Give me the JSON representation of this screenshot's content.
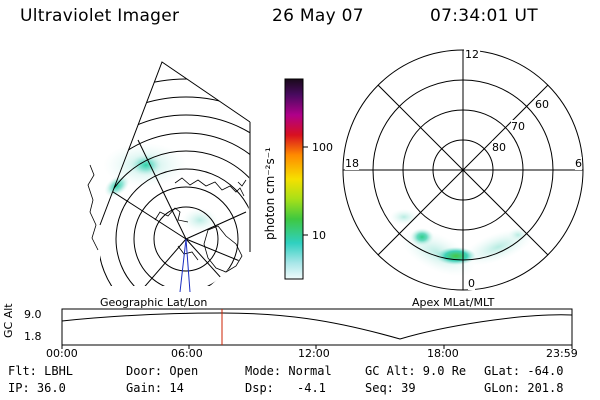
{
  "header": {
    "instrument": "Ultraviolet Imager",
    "date": "26 May 07",
    "time": "07:34:01 UT"
  },
  "colorbar": {
    "label": "photon cm⁻²s⁻¹",
    "ticks": [
      "100",
      "10"
    ]
  },
  "polar_plot": {
    "hour_labels": [
      "12",
      "18",
      "6",
      "0"
    ],
    "lat_labels": [
      "60",
      "70",
      "80"
    ],
    "caption": "Apex MLat/MLT"
  },
  "geo_plot": {
    "caption": "Geographic Lat/Lon"
  },
  "altitude_plot": {
    "ylabel": "GC Alt",
    "ytick_top": "9.0",
    "ytick_bottom": "1.8",
    "xticks": [
      "00:00",
      "06:00",
      "12:00",
      "18:00",
      "23:59"
    ],
    "marker_time": "07:34"
  },
  "status": {
    "filter": "Flt: LBHL",
    "ip": "IP: 36.0",
    "door": "Door: Open",
    "gain": "Gain: 14",
    "mode": "Mode: Normal",
    "dsp": "Dsp:",
    "dsp_value": "-4.1",
    "gc_alt": "GC Alt: 9.0 Re",
    "seq": "Seq: 39",
    "glat": "GLat: -64.0",
    "glon": "GLon: 201.8"
  },
  "colors": {
    "aurora_cyan": "#3fd0b8",
    "aurora_green": "#44c844",
    "marker_red": "#cc2200",
    "axis_blue": "#1a2cc0"
  }
}
